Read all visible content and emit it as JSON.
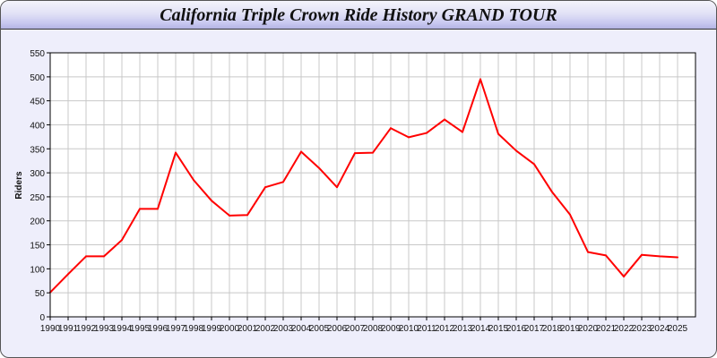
{
  "title": "California Triple Crown Ride History GRAND TOUR",
  "chart_data": {
    "type": "line",
    "title": "California Triple Crown Ride History GRAND TOUR",
    "xlabel": "",
    "ylabel": "Riders",
    "ylim": [
      0,
      550
    ],
    "yticks": [
      0,
      50,
      100,
      150,
      200,
      250,
      300,
      350,
      400,
      450,
      500,
      550
    ],
    "grid": true,
    "categories": [
      "1990",
      "1991",
      "1992",
      "1993",
      "1994",
      "1995",
      "1996",
      "1997",
      "1998",
      "1999",
      "2000",
      "2001",
      "2002",
      "2003",
      "2004",
      "2005",
      "2006",
      "2007",
      "2008",
      "2009",
      "2010",
      "2011",
      "2012",
      "2013",
      "2014",
      "2015",
      "2016",
      "2017",
      "2018",
      "2019",
      "2020",
      "2021",
      "2022",
      "2023",
      "2024",
      "2025"
    ],
    "series": [
      {
        "color": "#ff0000",
        "values": [
          51,
          89,
          126,
          126,
          160,
          225,
          225,
          342,
          285,
          242,
          211,
          212,
          270,
          281,
          344,
          310,
          270,
          341,
          342,
          393,
          374,
          383,
          411,
          385,
          495,
          381,
          346,
          318,
          260,
          213,
          135,
          128,
          84,
          129,
          126,
          124
        ]
      }
    ]
  }
}
